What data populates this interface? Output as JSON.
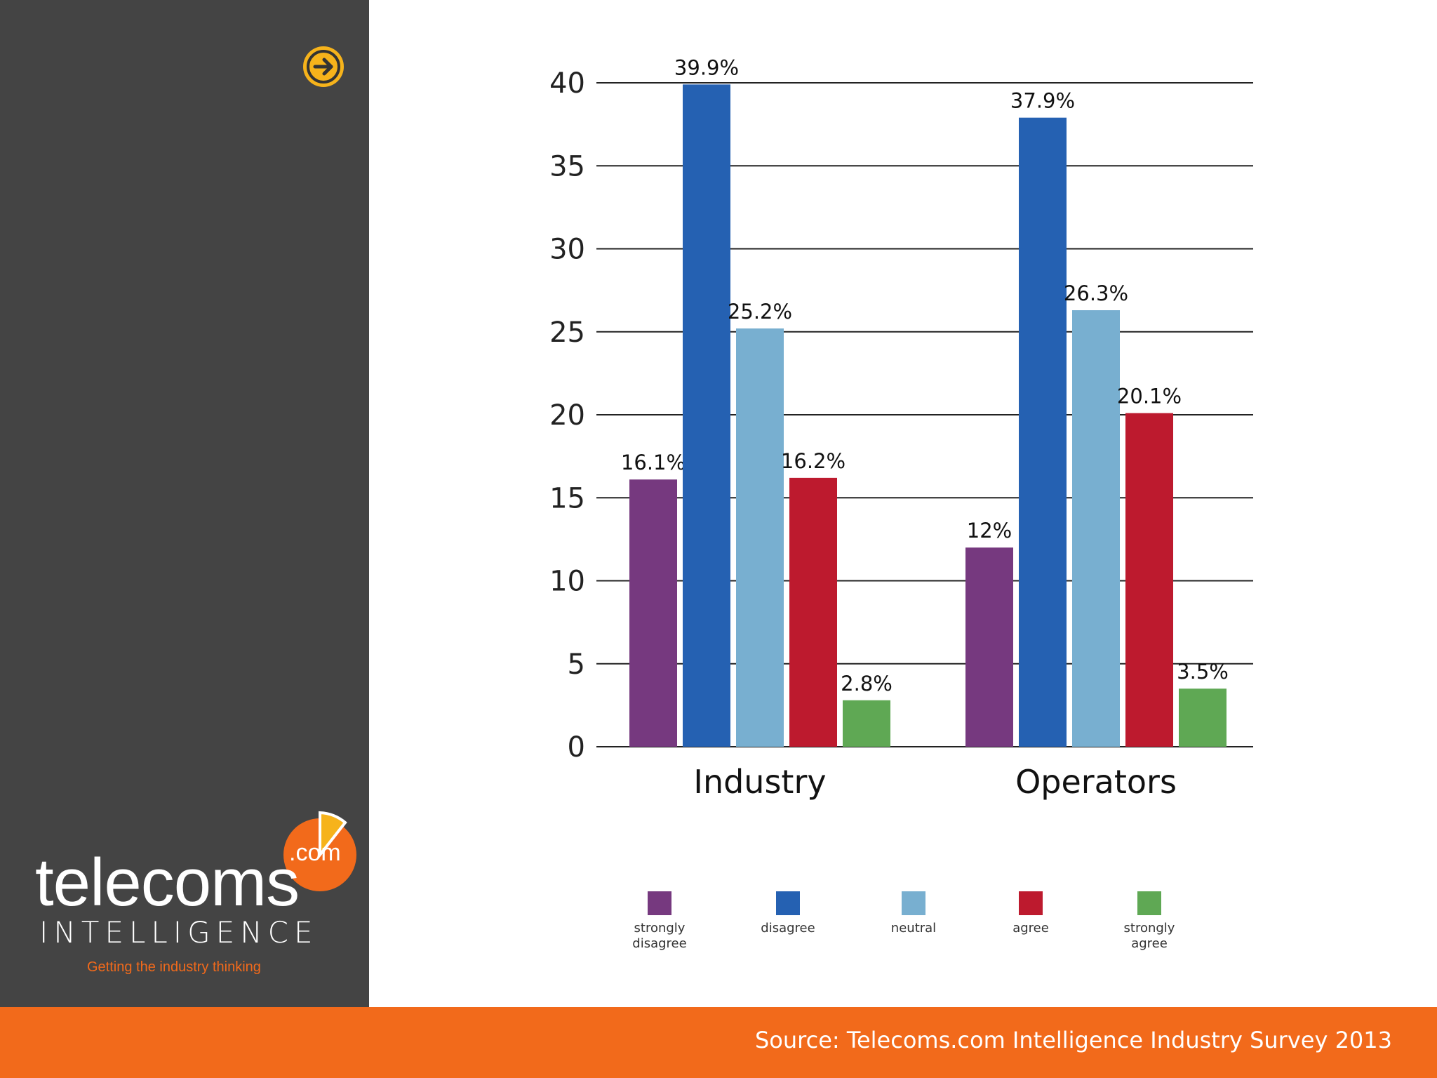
{
  "logo": {
    "word": "telecoms",
    "com": ".com",
    "subword": "INTELLIGENCE",
    "tagline": "Getting the industry thinking"
  },
  "nav": {
    "next_icon": "arrow-right-icon"
  },
  "footer": {
    "source": "Source: Telecoms.com Intelligence Industry Survey 2013"
  },
  "colors": {
    "sidebar": "#444444",
    "accent_orange": "#f26a1b",
    "accent_yellow": "#f6b31b",
    "strongly_disagree": "#76397f",
    "disagree": "#2561b2",
    "neutral": "#78afd0",
    "agree": "#bd1a2e",
    "strongly_agree": "#5fa854"
  },
  "chart_data": {
    "type": "bar",
    "title": "",
    "xlabel": "",
    "ylabel": "",
    "ylim": [
      0,
      40
    ],
    "yticks": [
      0,
      5,
      10,
      15,
      20,
      25,
      30,
      35,
      40
    ],
    "grid": true,
    "legend_position": "bottom",
    "categories": [
      "Industry",
      "Operators"
    ],
    "series": [
      {
        "name": "strongly\ndisagree",
        "color": "#76397f",
        "values": [
          16.1,
          12
        ],
        "labels": [
          "16.1%",
          "12%"
        ]
      },
      {
        "name": "disagree",
        "color": "#2561b2",
        "values": [
          39.9,
          37.9
        ],
        "labels": [
          "39.9%",
          "37.9%"
        ]
      },
      {
        "name": "neutral",
        "color": "#78afd0",
        "values": [
          25.2,
          26.3
        ],
        "labels": [
          "25.2%",
          "26.3%"
        ]
      },
      {
        "name": "agree",
        "color": "#bd1a2e",
        "values": [
          16.2,
          20.1
        ],
        "labels": [
          "16.2%",
          "20.1%"
        ]
      },
      {
        "name": "strongly\nagree",
        "color": "#5fa854",
        "values": [
          2.8,
          3.5
        ],
        "labels": [
          "2.8%",
          "3.5%"
        ]
      }
    ]
  }
}
